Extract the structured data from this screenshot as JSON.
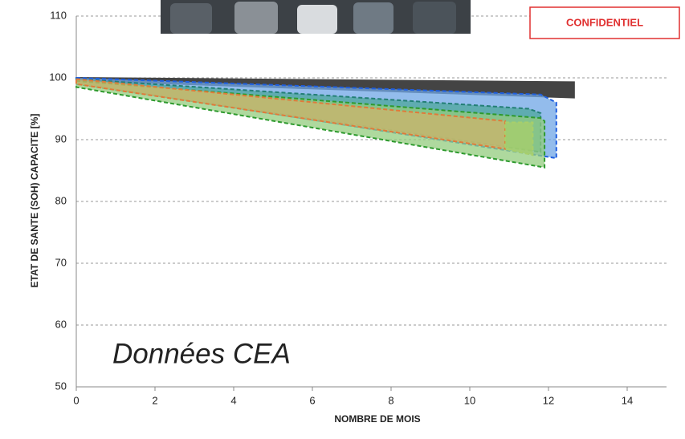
{
  "chart_data": {
    "type": "area",
    "x_label": "NOMBRE DE MOIS",
    "y_label": "ETAT DE SANTE (SOH) CAPACITE [%]",
    "annotation": "Données CEA",
    "badge": "CONFIDENTIEL",
    "xlim": [
      0,
      15
    ],
    "xticks": [
      0,
      2,
      4,
      6,
      8,
      10,
      12,
      14
    ],
    "ylim": [
      50,
      110
    ],
    "yticks": [
      50,
      60,
      70,
      80,
      90,
      100,
      110
    ],
    "grid": true,
    "series": [
      {
        "color": "#444444",
        "edge_color": "#444444",
        "x": [
          0,
          12.65,
          12.65,
          0
        ],
        "values": [
          100,
          99.3,
          96.8,
          99.6
        ]
      },
      {
        "color": "#6fa6e6",
        "edge_color": "#1f5fe0",
        "x": [
          0,
          11.8,
          12.2,
          12.2,
          0
        ],
        "values": [
          100,
          97.3,
          96,
          87,
          99.2
        ]
      },
      {
        "color": "#4ea79c",
        "edge_color": "#237f75",
        "x": [
          0,
          11.5,
          11.8,
          11.8,
          0
        ],
        "values": [
          99.8,
          95,
          94.3,
          88,
          99
        ]
      },
      {
        "color": "#93cc7e",
        "edge_color": "#2e9a2e",
        "x": [
          0,
          11.8,
          11.9,
          11.9,
          0
        ],
        "values": [
          99.5,
          93.5,
          93,
          85.5,
          98.5
        ]
      },
      {
        "color": "#cdb46a",
        "edge_color": "#e07a3a",
        "x": [
          0,
          10.9,
          10.9,
          0
        ],
        "values": [
          99.8,
          93,
          88.5,
          99
        ]
      },
      {
        "color": "#a8cf6a",
        "edge_color": "#a8cf6a",
        "x": [
          10.9,
          11.6,
          11.6,
          10.9
        ],
        "values": [
          92.8,
          92.8,
          87.5,
          88.5
        ]
      }
    ]
  }
}
